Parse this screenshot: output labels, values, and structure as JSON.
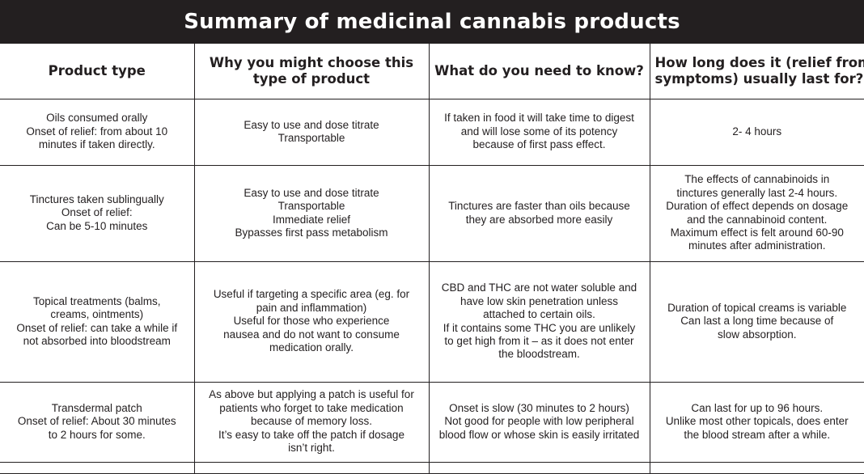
{
  "title": "Summary of medicinal cannabis products",
  "headers": [
    [
      "Product type"
    ],
    [
      "Why you might choose this",
      "type of product"
    ],
    [
      "What do you need to know?"
    ],
    [
      "How long does it (relief from",
      "symptoms) usually last for?"
    ]
  ],
  "rows": [
    {
      "product": [
        "Oils consumed orally",
        "Onset of relief: from about 10",
        "minutes if taken directly."
      ],
      "why": [
        "Easy to use and dose titrate",
        "Transportable"
      ],
      "know": [
        "If taken in food it will take time to digest",
        "and will lose some of its potency",
        "because of first pass effect."
      ],
      "duration": [
        "2- 4 hours"
      ]
    },
    {
      "product": [
        "Tinctures taken sublingually",
        "Onset of relief:",
        "Can be 5-10 minutes"
      ],
      "why": [
        "Easy to use and dose titrate",
        "Transportable",
        "Immediate relief",
        "Bypasses first pass metabolism"
      ],
      "know": [
        "Tinctures are faster than oils because",
        "they are absorbed more easily"
      ],
      "duration": [
        "The effects of cannabinoids in",
        "tinctures generally last 2-4 hours.",
        "Duration of effect depends on dosage",
        "and the cannabinoid content.",
        "Maximum effect is felt around 60-90",
        "minutes after administration."
      ]
    },
    {
      "product": [
        "Topical treatments (balms,",
        "creams, ointments)",
        "Onset of relief: can take a while if",
        "not absorbed into bloodstream"
      ],
      "why": [
        "Useful if targeting a specific area (eg. for",
        "pain and inflammation)",
        "Useful for those who experience",
        "nausea and do not want to consume",
        "medication orally."
      ],
      "know": [
        "CBD and THC are not water soluble and",
        "have low skin penetration unless",
        "attached to certain oils.",
        "If it contains some THC you are unlikely",
        "to get high from it – as it does not enter",
        "the bloodstream."
      ],
      "duration": [
        "Duration of topical creams is variable",
        "Can last a long time because of",
        "slow absorption."
      ]
    },
    {
      "product": [
        "Transdermal patch",
        "Onset of relief: About 30 minutes",
        "to 2 hours for some."
      ],
      "why": [
        "As above but applying a patch is useful for",
        "patients who forget to take medication",
        "because of memory loss.",
        "It’s easy to take off the patch if dosage",
        "isn’t right."
      ],
      "know": [
        "Onset is slow (30 minutes to 2 hours)",
        "Not good for people with low peripheral",
        "blood flow or whose skin is easily irritated"
      ],
      "duration": [
        "Can last for up to 96 hours.",
        "Unlike most other topicals, does enter",
        "the blood stream after a while."
      ]
    }
  ]
}
